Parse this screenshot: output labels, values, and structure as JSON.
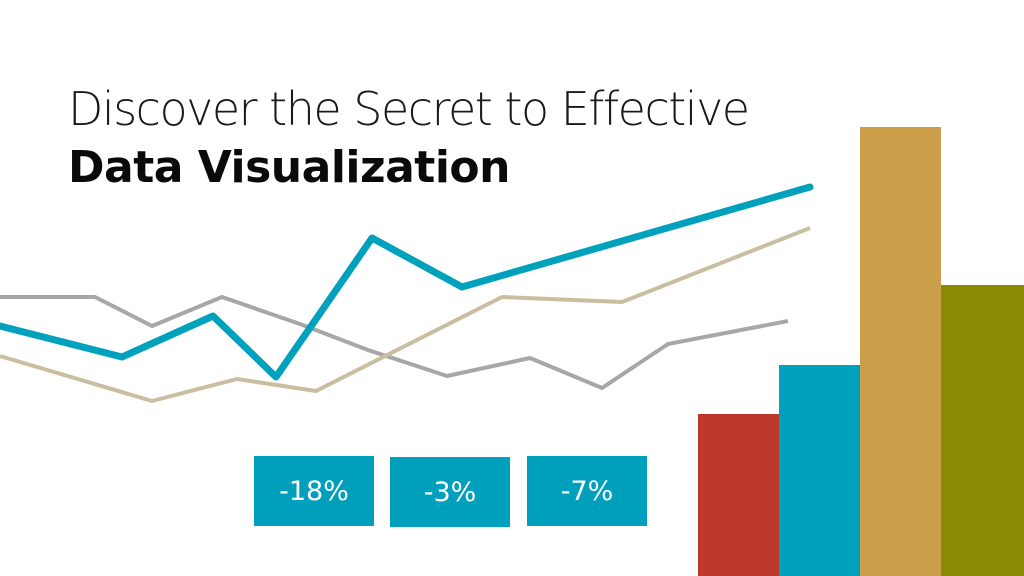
{
  "headline": {
    "line1": "Discover the Secret to Effective",
    "line2": "Data Visualization"
  },
  "badges": [
    "-18%",
    "-3%",
    "-7%"
  ],
  "colors": {
    "teal": "#00a1bd",
    "sand": "#c9bea0",
    "gray": "#a7a7a9",
    "red": "#bd3a2b",
    "gold": "#cca04a",
    "olive": "#8b8b06",
    "badge": "#00a0bd"
  },
  "decorative_bar_levels": [
    0.33,
    0.44,
    0.8,
    0.59
  ]
}
